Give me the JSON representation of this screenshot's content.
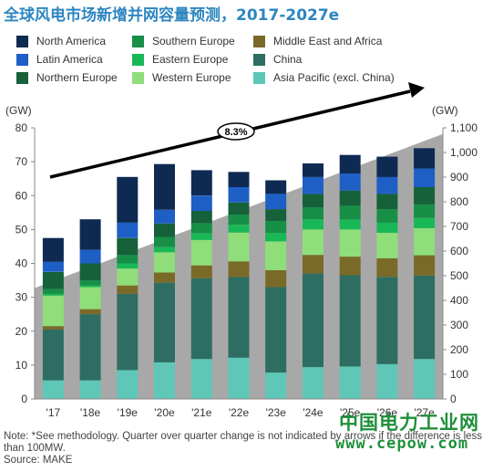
{
  "title": "全球风电市场新增并网容量预测，2017-2027e",
  "note_lines": [
    "Note: *See methodology. Quarter over quarter change is not indicated by arrows if the difference is less than 100MW.",
    "Source: MAKE"
  ],
  "watermark": {
    "cn": "中国电力工业网",
    "url": "www.cepow.com"
  },
  "trend_label": "8.3%",
  "colors": {
    "north_america": "#0f2a52",
    "latin_america": "#1e5fc6",
    "northern_europe": "#16613a",
    "southern_europe": "#178f47",
    "eastern_europe": "#19b857",
    "western_europe": "#8fde7a",
    "middle_east_africa": "#7a6a28",
    "china": "#2e6e62",
    "asia_pacific": "#5ec7b8",
    "trend_area": "#a8a8a8"
  },
  "chart_data": {
    "type": "bar",
    "stacked": true,
    "categories": [
      "'17",
      "'18e",
      "'19e",
      "'20e",
      "'21e",
      "'22e",
      "'23e",
      "'24e",
      "'25e",
      "'26e",
      "'27e"
    ],
    "y_left": {
      "label": "(GW)",
      "range": [
        0,
        80
      ],
      "ticks": [
        0,
        10,
        20,
        30,
        40,
        50,
        60,
        70,
        80
      ]
    },
    "y_right": {
      "label": "(GW)",
      "range": [
        0,
        1100
      ],
      "ticks": [
        0,
        100,
        200,
        300,
        400,
        500,
        600,
        700,
        800,
        900,
        1000,
        1100
      ],
      "tick_labels": [
        "0",
        "100",
        "200",
        "300",
        "400",
        "500",
        "600",
        "700",
        "800",
        "900",
        "1,000",
        "1,100"
      ]
    },
    "cumulative_area_right_axis": {
      "start": 450,
      "end": 1075
    },
    "grid": false,
    "legend_position": "top",
    "series": [
      {
        "name": "Asia Pacific (excl. China)",
        "key": "asia_pacific",
        "values": [
          5.5,
          5.5,
          8.5,
          10.8,
          11.8,
          12.2,
          7.8,
          9.4,
          9.6,
          10.3,
          11.8
        ]
      },
      {
        "name": "China",
        "key": "china",
        "values": [
          15,
          19.5,
          22.5,
          23.5,
          23.8,
          23.8,
          25.2,
          27.6,
          26.9,
          25.7,
          24.6
        ]
      },
      {
        "name": "Middle East and Africa",
        "key": "middle_east_africa",
        "values": [
          1,
          1.5,
          2.5,
          3,
          3.8,
          4.6,
          5,
          5.5,
          5.5,
          5.5,
          6
        ]
      },
      {
        "name": "Western Europe",
        "key": "western_europe",
        "values": [
          9,
          6.5,
          5,
          6,
          7.5,
          8.5,
          8.5,
          7.5,
          8,
          7.5,
          8
        ]
      },
      {
        "name": "Eastern Europe",
        "key": "eastern_europe",
        "values": [
          0.5,
          0.5,
          1.5,
          1.5,
          2,
          2.3,
          2.5,
          3,
          3,
          3,
          3
        ]
      },
      {
        "name": "Southern Europe",
        "key": "southern_europe",
        "values": [
          1.5,
          1.5,
          2.5,
          3,
          3,
          3,
          3.5,
          3.5,
          4,
          4,
          4
        ]
      },
      {
        "name": "Northern Europe",
        "key": "northern_europe",
        "values": [
          5,
          5,
          5,
          4,
          3.6,
          3.6,
          3.5,
          4,
          4.5,
          4.5,
          5.1
        ]
      },
      {
        "name": "Latin America",
        "key": "latin_america",
        "values": [
          3,
          4,
          4.5,
          4,
          4.5,
          4.5,
          4.5,
          5,
          5,
          5,
          5.5
        ]
      },
      {
        "name": "North America",
        "key": "north_america",
        "values": [
          7,
          9,
          13.5,
          13.5,
          7.5,
          4.5,
          4,
          4,
          5.5,
          6,
          6
        ]
      }
    ],
    "legend_order": [
      "north_america",
      "southern_europe",
      "middle_east_africa",
      "latin_america",
      "eastern_europe",
      "china",
      "northern_europe",
      "western_europe",
      "asia_pacific"
    ]
  }
}
